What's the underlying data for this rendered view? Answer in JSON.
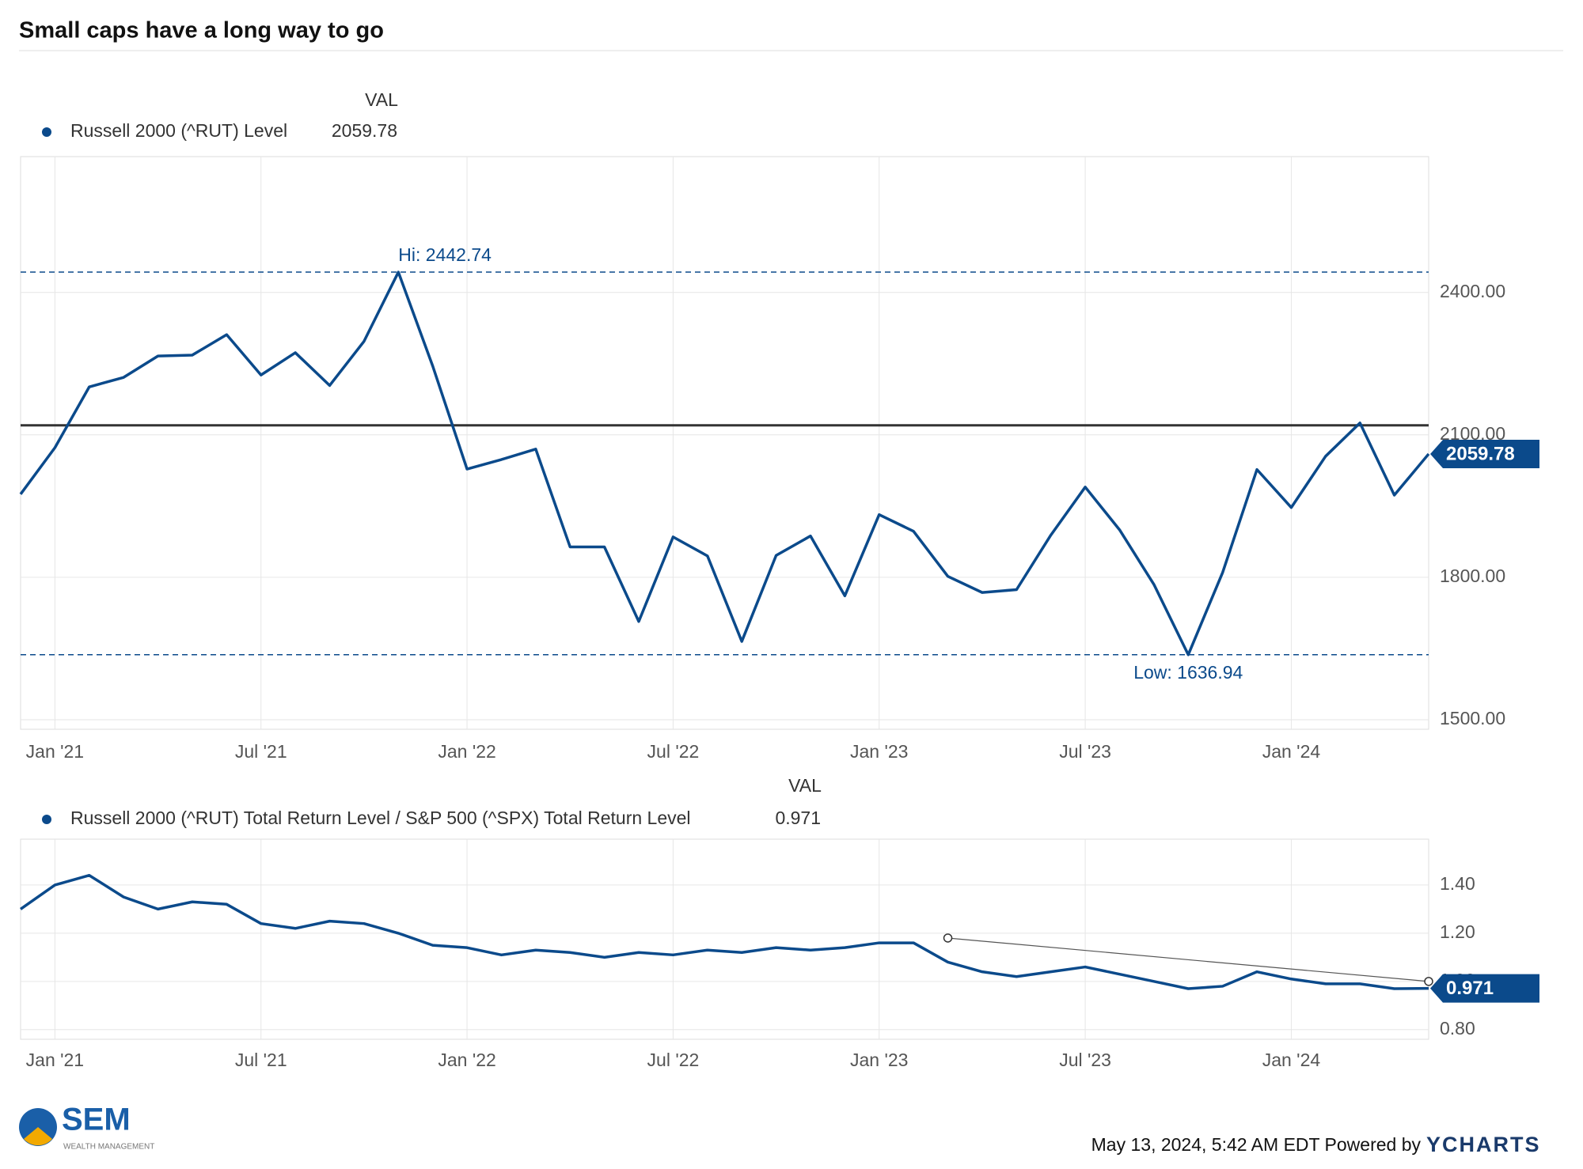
{
  "page": {
    "title": "Small caps have a long way to go",
    "timestamp": "May 13, 2024, 5:42 AM EDT Powered by",
    "brand": "YCHARTS",
    "logo": "SEM",
    "logo_sub": "WEALTH MANAGEMENT"
  },
  "chart_data": [
    {
      "type": "line",
      "legend_header": "VAL",
      "x": [
        "2020-12",
        "2021-01",
        "2021-02",
        "2021-03",
        "2021-04",
        "2021-05",
        "2021-06",
        "2021-07",
        "2021-08",
        "2021-09",
        "2021-10",
        "2021-11",
        "2021-12",
        "2022-01",
        "2022-02",
        "2022-03",
        "2022-04",
        "2022-05",
        "2022-06",
        "2022-07",
        "2022-08",
        "2022-09",
        "2022-10",
        "2022-11",
        "2022-12",
        "2023-01",
        "2023-02",
        "2023-03",
        "2023-04",
        "2023-05",
        "2023-06",
        "2023-07",
        "2023-08",
        "2023-09",
        "2023-10",
        "2023-11",
        "2023-12",
        "2024-01",
        "2024-02",
        "2024-03",
        "2024-04",
        "2024-05"
      ],
      "series": [
        {
          "name": "Russell 2000 (^RUT) Level",
          "color": "#0b4a8b",
          "values": [
            1975,
            2073,
            2201,
            2221,
            2266,
            2268,
            2311,
            2226,
            2273,
            2204,
            2297,
            2442.74,
            2245,
            2028,
            2048,
            2070,
            1864,
            1864,
            1707,
            1885,
            1845,
            1665,
            1846,
            1887,
            1761,
            1932,
            1897,
            1802,
            1768,
            1774,
            1889,
            1990,
            1900,
            1785,
            1636.94,
            1810,
            2027,
            1947,
            2055,
            2125,
            1973,
            2059.78
          ]
        }
      ],
      "annotations": [
        {
          "label": "Hi: 2442.74",
          "value": 2442.74
        },
        {
          "label": "Low: 1636.94",
          "value": 1636.94
        }
      ],
      "reference_line": 2120,
      "xlim": [
        "2020-12",
        "2024-05"
      ],
      "xticks": [
        {
          "value": "2021-01",
          "label": "Jan '21"
        },
        {
          "value": "2021-07",
          "label": "Jul '21"
        },
        {
          "value": "2022-01",
          "label": "Jan '22"
        },
        {
          "value": "2022-07",
          "label": "Jul '22"
        },
        {
          "value": "2023-01",
          "label": "Jan '23"
        },
        {
          "value": "2023-07",
          "label": "Jul '23"
        },
        {
          "value": "2024-01",
          "label": "Jan '24"
        }
      ],
      "ylim": [
        1480,
        2686
      ],
      "yticks": [
        {
          "value": 1500,
          "label": "1500.00"
        },
        {
          "value": 1800,
          "label": "1800.00"
        },
        {
          "value": 2100,
          "label": "2100.00"
        },
        {
          "value": 2400,
          "label": "2400.00"
        }
      ],
      "grid": true
    },
    {
      "type": "line",
      "legend_header": "VAL",
      "x": [
        "2020-12",
        "2021-01",
        "2021-02",
        "2021-03",
        "2021-04",
        "2021-05",
        "2021-06",
        "2021-07",
        "2021-08",
        "2021-09",
        "2021-10",
        "2021-11",
        "2021-12",
        "2022-01",
        "2022-02",
        "2022-03",
        "2022-04",
        "2022-05",
        "2022-06",
        "2022-07",
        "2022-08",
        "2022-09",
        "2022-10",
        "2022-11",
        "2022-12",
        "2023-01",
        "2023-02",
        "2023-03",
        "2023-04",
        "2023-05",
        "2023-06",
        "2023-07",
        "2023-08",
        "2023-09",
        "2023-10",
        "2023-11",
        "2023-12",
        "2024-01",
        "2024-02",
        "2024-03",
        "2024-04",
        "2024-05"
      ],
      "series": [
        {
          "name": "Russell 2000 (^RUT) Total Return Level / S&P 500 (^SPX) Total Return Level",
          "color": "#0b4a8b",
          "values": [
            1.3,
            1.4,
            1.44,
            1.35,
            1.3,
            1.33,
            1.32,
            1.24,
            1.22,
            1.25,
            1.24,
            1.2,
            1.15,
            1.14,
            1.11,
            1.13,
            1.12,
            1.1,
            1.12,
            1.11,
            1.13,
            1.12,
            1.14,
            1.13,
            1.14,
            1.16,
            1.16,
            1.08,
            1.04,
            1.02,
            1.04,
            1.06,
            1.03,
            1.0,
            0.97,
            0.98,
            1.04,
            1.01,
            0.99,
            0.99,
            0.97,
            0.971
          ]
        }
      ],
      "trend_line": {
        "x": [
          "2023-03",
          "2024-05"
        ],
        "values": [
          1.18,
          1.0
        ]
      },
      "xlim": [
        "2020-12",
        "2024-05"
      ],
      "xticks": [
        {
          "value": "2021-01",
          "label": "Jan '21"
        },
        {
          "value": "2021-07",
          "label": "Jul '21"
        },
        {
          "value": "2022-01",
          "label": "Jan '22"
        },
        {
          "value": "2022-07",
          "label": "Jul '22"
        },
        {
          "value": "2023-01",
          "label": "Jan '23"
        },
        {
          "value": "2023-07",
          "label": "Jul '23"
        },
        {
          "value": "2024-01",
          "label": "Jan '24"
        }
      ],
      "ylim": [
        0.76,
        1.59
      ],
      "yticks": [
        {
          "value": 0.8,
          "label": "0.80"
        },
        {
          "value": 1.0,
          "label": "1.00"
        },
        {
          "value": 1.2,
          "label": "1.20"
        },
        {
          "value": 1.4,
          "label": "1.40"
        }
      ],
      "grid": true
    }
  ]
}
